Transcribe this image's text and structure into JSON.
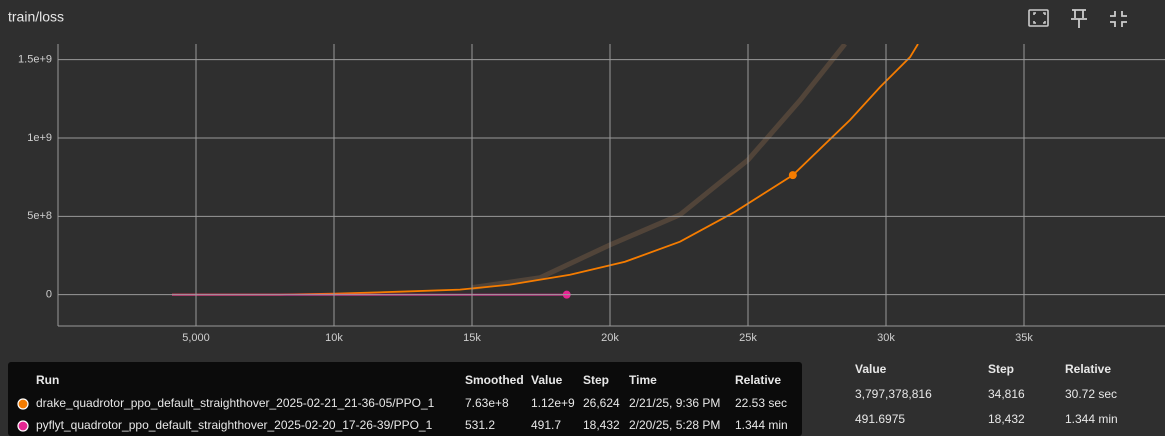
{
  "header": {
    "title": "train/loss"
  },
  "chart_data": {
    "type": "line",
    "xlim": [
      0,
      40000
    ],
    "ylim": [
      -200000000,
      1600000000
    ],
    "xticks": [
      {
        "value": 5000,
        "label": "5,000"
      },
      {
        "value": 10000,
        "label": "10k"
      },
      {
        "value": 15000,
        "label": "15k"
      },
      {
        "value": 20000,
        "label": "20k"
      },
      {
        "value": 25000,
        "label": "25k"
      },
      {
        "value": 30000,
        "label": "30k"
      },
      {
        "value": 35000,
        "label": "35k"
      }
    ],
    "yticks": [
      {
        "value": 0,
        "label": "0"
      },
      {
        "value": 500000000,
        "label": "5e+8"
      },
      {
        "value": 1000000000,
        "label": "1e+9"
      },
      {
        "value": 1500000000,
        "label": "1.5e+9"
      }
    ],
    "grid": true,
    "series": [
      {
        "name": "drake_quadrotor_ppo_default_straighthover_2025-02-21_21-36-05/PPO_1",
        "color": "#f57c00",
        "x": [
          4130,
          8043,
          10036,
          12391,
          14565,
          16377,
          18551,
          20543,
          22536,
          24529,
          26624,
          28696,
          29783,
          30870,
          31159
        ],
        "values": [
          0,
          0,
          6400000,
          19000000,
          32000000,
          64000000,
          127000000,
          210000000,
          338000000,
          529000000,
          763000000,
          1115000000,
          1325000000,
          1516000000,
          1600000000
        ],
        "raw": {
          "color": "#5a4a3c",
          "x": [
            15000,
            17464,
            20000,
            22536,
            25000,
            26884,
            28514
          ],
          "values": [
            45000000,
            108000000,
            318000000,
            510000000,
            860000000,
            1240000000,
            1600000000
          ]
        }
      },
      {
        "name": "pyflyt_quadrotor_ppo_default_straighthover_2025-02-20_17-26-39/PPO_1",
        "color": "#e52592",
        "x": [
          4130,
          8000,
          12000,
          16000,
          18432
        ],
        "values": [
          0,
          0,
          0,
          0,
          531.2
        ]
      }
    ]
  },
  "tooltip": {
    "columns": [
      "Run",
      "Smoothed",
      "Value",
      "Step",
      "Time",
      "Relative"
    ],
    "rows": [
      {
        "smoothed": "7.63e+8",
        "value": "1.12e+9",
        "step": {
          "value": 26624,
          "label": "26,624"
        },
        "time": "2/21/25, 9:36 PM",
        "relative": "22.53 sec"
      },
      {
        "smoothed": "531.2",
        "value": "491.7",
        "step": {
          "value": 18432,
          "label": "18,432"
        },
        "time": "2/20/25, 5:28 PM",
        "relative": "1.344 min"
      }
    ]
  },
  "side_table": {
    "columns": [
      "Value",
      "Step",
      "Relative"
    ],
    "rows": [
      [
        "3,797,378,816",
        "34,816",
        "30.72 sec"
      ],
      [
        "491.6975",
        "18,432",
        "1.344 min"
      ]
    ]
  }
}
